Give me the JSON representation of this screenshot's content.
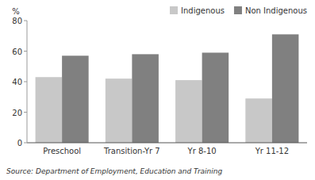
{
  "chart_data": {
    "type": "bar",
    "y_label": "%",
    "categories": [
      "Preschool",
      "Transition-Yr 7",
      "Yr 8-10",
      "Yr 11-12"
    ],
    "series": [
      {
        "name": "Indigenous",
        "color": "#c8c8c8",
        "values": [
          43,
          42,
          41,
          29
        ]
      },
      {
        "name": "Non Indigenous",
        "color": "#808080",
        "values": [
          57,
          58,
          59,
          71
        ]
      }
    ],
    "ylim": [
      0,
      80
    ],
    "yticks": [
      0,
      20,
      40,
      60,
      80
    ],
    "grid": false,
    "legend": "upper right",
    "annotations": [
      "Source: Department of Employment, Education and Training"
    ]
  }
}
